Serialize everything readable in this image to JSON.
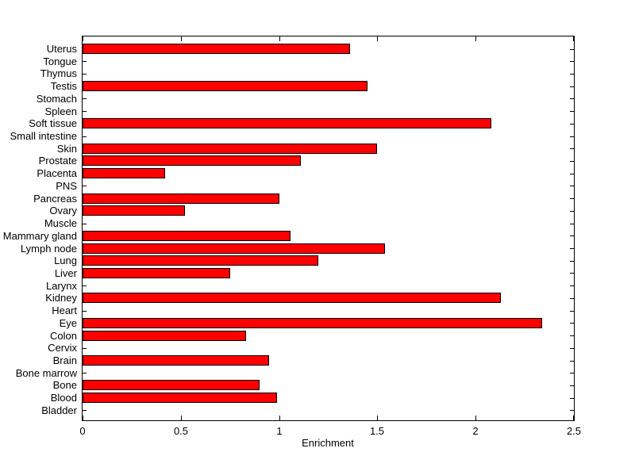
{
  "figure": {
    "background": "#ffffff",
    "text_color": "#000000"
  },
  "chart_data": {
    "type": "bar",
    "orientation": "horizontal",
    "title": "",
    "xlabel": "Enrichment",
    "ylabel": "",
    "xlim": [
      0,
      2.5
    ],
    "x_ticks": [
      0,
      0.5,
      1,
      1.5,
      2,
      2.5
    ],
    "x_tick_labels": [
      "0",
      "0.5",
      "1",
      "1.5",
      "2",
      "2.5"
    ],
    "grid": false,
    "legend": null,
    "bar_color": "#ff0000",
    "bar_edge_color": "#000000",
    "axis_color": "#000000",
    "categories": [
      "Uterus",
      "Tongue",
      "Thymus",
      "Testis",
      "Stomach",
      "Spleen",
      "Soft tissue",
      "Small intestine",
      "Skin",
      "Prostate",
      "Placenta",
      "PNS",
      "Pancreas",
      "Ovary",
      "Muscle",
      "Mammary gland",
      "Lymph node",
      "Lung",
      "Liver",
      "Larynx",
      "Kidney",
      "Heart",
      "Eye",
      "Colon",
      "Cervix",
      "Brain",
      "Bone marrow",
      "Bone",
      "Blood",
      "Bladder"
    ],
    "values": [
      1.36,
      0,
      0,
      1.45,
      0,
      0,
      2.08,
      0,
      1.5,
      1.11,
      0.42,
      0,
      1.0,
      0.52,
      0,
      1.06,
      1.54,
      1.2,
      0.75,
      0,
      2.13,
      0,
      2.34,
      0.83,
      0,
      0.95,
      0,
      0.9,
      0.99,
      0
    ]
  }
}
